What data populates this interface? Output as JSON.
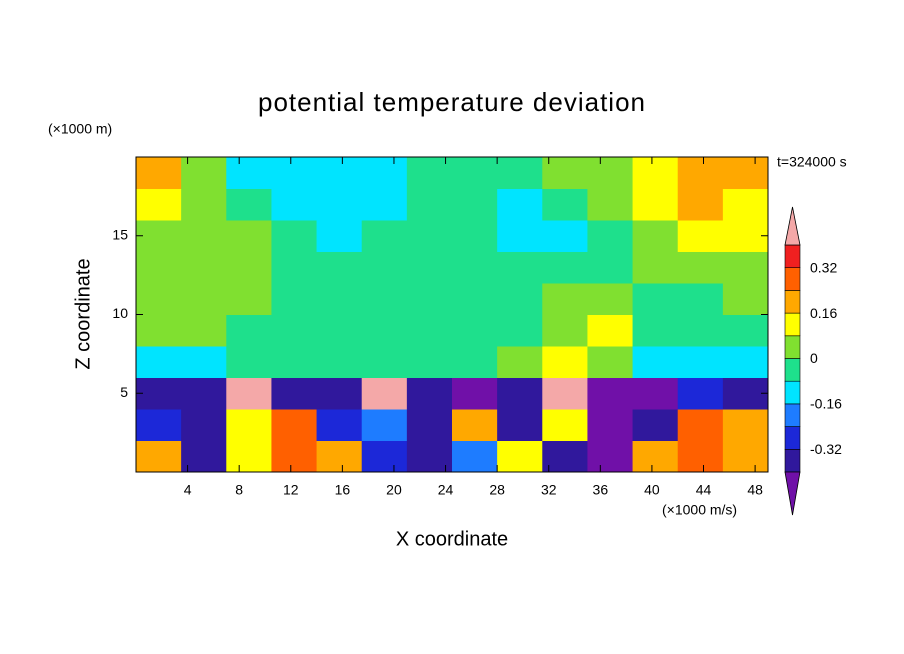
{
  "chart_data": {
    "type": "contour",
    "title": "potential temperature deviation",
    "x_label": "X coordinate",
    "y_label": "Z coordinate",
    "x_unit": "(×1000 m/s)",
    "y_unit": "(×1000 m)",
    "time_label": "t=324000 s",
    "xlim": [
      0,
      49
    ],
    "ylim": [
      0,
      20
    ],
    "xticks": [
      4,
      8,
      12,
      16,
      20,
      24,
      28,
      32,
      36,
      40,
      44,
      48
    ],
    "yticks": [
      5,
      10,
      15
    ],
    "x": [
      1.75,
      5.25,
      8.75,
      12.25,
      15.75,
      19.25,
      22.75,
      26.25,
      29.75,
      33.25,
      36.75,
      40.25,
      43.75,
      47.25
    ],
    "y": [
      1,
      3,
      5,
      7,
      9,
      11,
      13,
      15,
      17,
      19
    ],
    "z": [
      [
        0.2,
        -0.36,
        0.1,
        0.3,
        0.2,
        -0.28,
        -0.36,
        -0.2,
        0.1,
        -0.36,
        -0.44,
        0.2,
        0.3,
        0.2
      ],
      [
        -0.28,
        -0.36,
        0.1,
        0.3,
        -0.28,
        -0.2,
        -0.36,
        0.2,
        -0.36,
        0.1,
        -0.44,
        -0.36,
        0.3,
        0.2
      ],
      [
        -0.36,
        -0.36,
        0.45,
        -0.36,
        -0.36,
        0.45,
        -0.36,
        -0.44,
        -0.36,
        0.45,
        -0.44,
        -0.44,
        -0.28,
        -0.36
      ],
      [
        -0.1,
        -0.1,
        -0.04,
        -0.04,
        -0.04,
        -0.04,
        -0.04,
        -0.04,
        0.02,
        0.1,
        0.04,
        -0.1,
        -0.1,
        -0.1
      ],
      [
        0.04,
        0.02,
        -0.04,
        -0.04,
        -0.04,
        -0.04,
        -0.04,
        -0.04,
        -0.04,
        0.04,
        0.1,
        -0.04,
        -0.04,
        -0.04
      ],
      [
        0.04,
        0.04,
        0.02,
        -0.04,
        -0.04,
        -0.04,
        -0.04,
        -0.04,
        -0.04,
        0.02,
        0.04,
        -0.04,
        -0.04,
        0.02
      ],
      [
        0.04,
        0.02,
        0.02,
        -0.04,
        -0.04,
        -0.04,
        -0.04,
        -0.04,
        -0.04,
        -0.04,
        -0.04,
        0.02,
        0.04,
        0.04
      ],
      [
        0.04,
        0.04,
        0.02,
        -0.04,
        -0.1,
        -0.04,
        -0.04,
        -0.04,
        -0.1,
        -0.1,
        -0.04,
        0.04,
        0.1,
        0.1
      ],
      [
        0.1,
        0.02,
        -0.04,
        -0.12,
        -0.12,
        -0.1,
        -0.04,
        -0.04,
        -0.1,
        -0.04,
        0.02,
        0.1,
        0.2,
        0.12
      ],
      [
        0.2,
        0.02,
        -0.1,
        -0.12,
        -0.12,
        -0.1,
        -0.04,
        -0.04,
        -0.04,
        0.02,
        0.04,
        0.1,
        0.2,
        0.2
      ]
    ],
    "levels": [
      -0.4,
      -0.32,
      -0.24,
      -0.16,
      -0.08,
      0,
      0.08,
      0.16,
      0.24,
      0.32,
      0.4
    ],
    "colors": [
      "#7010a8",
      "#30189c",
      "#1c28d8",
      "#1e7cff",
      "#00e4ff",
      "#1ee08c",
      "#80e030",
      "#ffff00",
      "#ffa800",
      "#ff6000",
      "#f02020",
      "#f4a8a8"
    ],
    "cticks": [
      0.32,
      0.16,
      0,
      -0.16,
      -0.32
    ]
  }
}
